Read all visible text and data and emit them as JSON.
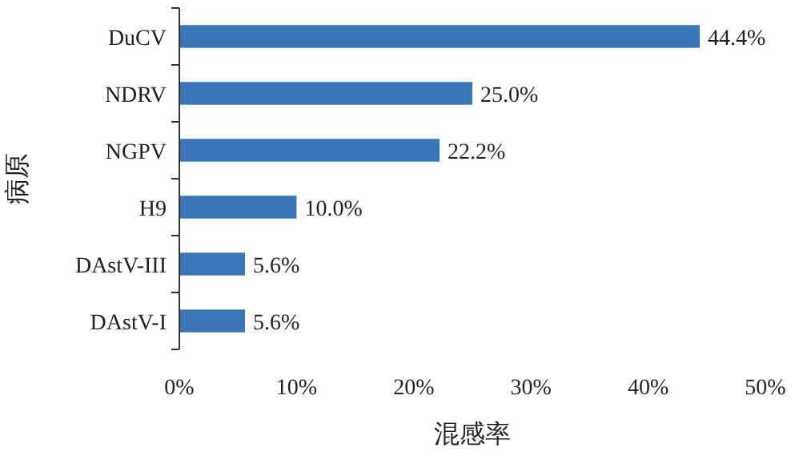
{
  "chart_data": {
    "type": "bar",
    "orientation": "horizontal",
    "xlabel": "混感率",
    "ylabel": "病原",
    "categories": [
      "DuCV",
      "NDRV",
      "NGPV",
      "H9",
      "DAstV-III",
      "DAstV-I"
    ],
    "values": [
      44.4,
      25.0,
      22.2,
      10.0,
      5.6,
      5.6
    ],
    "value_labels": [
      "44.4%",
      "25.0%",
      "22.2%",
      "10.0%",
      "5.6%",
      "5.6%"
    ],
    "color": "#3a75b8",
    "xlim": [
      0,
      50
    ],
    "xticks": [
      {
        "value": 0,
        "label": "0%"
      },
      {
        "value": 10,
        "label": "10%"
      },
      {
        "value": 20,
        "label": "20%"
      },
      {
        "value": 30,
        "label": "30%"
      },
      {
        "value": 40,
        "label": "40%"
      },
      {
        "value": 50,
        "label": "50%"
      }
    ],
    "grid": false
  }
}
